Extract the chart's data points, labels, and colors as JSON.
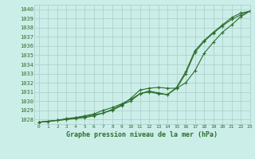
{
  "title": "Graphe pression niveau de la mer (hPa)",
  "xlim": [
    -0.5,
    23
  ],
  "ylim": [
    1027.5,
    1040.5
  ],
  "yticks": [
    1028,
    1029,
    1030,
    1031,
    1032,
    1033,
    1034,
    1035,
    1036,
    1037,
    1038,
    1039,
    1040
  ],
  "xticks": [
    0,
    1,
    2,
    3,
    4,
    5,
    6,
    7,
    8,
    9,
    10,
    11,
    12,
    13,
    14,
    15,
    16,
    17,
    18,
    19,
    20,
    21,
    22,
    23
  ],
  "bg_color": "#cceee8",
  "grid_color": "#aacccc",
  "line_color": "#2d6e2d",
  "tick_color": "#2d6e2d",
  "title_color": "#2d6e2d",
  "line1": [
    1027.7,
    1027.8,
    1027.9,
    1028.0,
    1028.1,
    1028.2,
    1028.4,
    1028.7,
    1029.0,
    1029.5,
    1030.3,
    1031.2,
    1031.4,
    1031.5,
    1031.4,
    1031.4,
    1032.0,
    1033.3,
    1035.2,
    1036.4,
    1037.5,
    1038.3,
    1039.2,
    1039.8
  ],
  "line2": [
    1027.7,
    1027.8,
    1027.9,
    1028.0,
    1028.2,
    1028.3,
    1028.5,
    1028.7,
    1029.1,
    1029.6,
    1030.0,
    1030.8,
    1031.0,
    1030.8,
    1030.7,
    1031.5,
    1033.2,
    1035.5,
    1036.6,
    1037.5,
    1038.3,
    1039.1,
    1039.6,
    1039.8
  ],
  "line3": [
    1027.7,
    1027.8,
    1027.9,
    1028.1,
    1028.2,
    1028.4,
    1028.6,
    1029.0,
    1029.3,
    1029.7,
    1030.2,
    1030.8,
    1031.1,
    1030.9,
    1030.7,
    1031.4,
    1033.0,
    1035.3,
    1036.5,
    1037.4,
    1038.2,
    1038.9,
    1039.4,
    1039.8
  ]
}
